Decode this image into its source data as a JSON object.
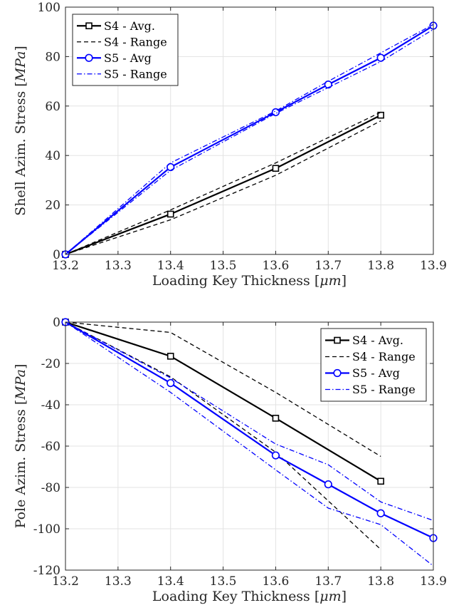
{
  "chart_data": [
    {
      "type": "line",
      "title": "",
      "xlabel": "Loading Key Thickness [μm]",
      "ylabel": "Shell Azim. Stress [MPa]",
      "xlim": [
        13.2,
        13.9
      ],
      "ylim": [
        0,
        100
      ],
      "xticks": [
        13.2,
        13.3,
        13.4,
        13.5,
        13.6,
        13.7,
        13.8,
        13.9
      ],
      "yticks": [
        0,
        20,
        40,
        60,
        80,
        100
      ],
      "xtick_labels": [
        "13.2",
        "13.3",
        "13.4",
        "13.5",
        "13.6",
        "13.7",
        "13.8",
        "13.9"
      ],
      "ytick_labels": [
        "0",
        "20",
        "40",
        "60",
        "80",
        "100"
      ],
      "grid": true,
      "legend_position": "top-left",
      "series": [
        {
          "name": "S4 - Avg.",
          "color": "#000000",
          "style": "solid",
          "marker": "square",
          "x": [
            13.2,
            13.4,
            13.6,
            13.8
          ],
          "y": [
            0,
            16.3,
            34.8,
            56.3
          ]
        },
        {
          "name": "S4 - Range",
          "color": "#000000",
          "style": "dashed",
          "marker": "none",
          "in_legend": true,
          "x": [
            13.2,
            13.4,
            13.6,
            13.8
          ],
          "y": [
            0,
            18.0,
            37.0,
            57.5
          ]
        },
        {
          "name": "",
          "color": "#000000",
          "style": "dashed",
          "marker": "none",
          "in_legend": false,
          "x": [
            13.2,
            13.4,
            13.6,
            13.8
          ],
          "y": [
            0,
            14.0,
            32.0,
            54.0
          ]
        },
        {
          "name": "S5 - Avg",
          "color": "#0000ff",
          "style": "solid",
          "marker": "circle",
          "x": [
            13.2,
            13.4,
            13.6,
            13.7,
            13.8,
            13.9
          ],
          "y": [
            0,
            35.3,
            57.5,
            68.7,
            79.5,
            92.5
          ]
        },
        {
          "name": "S5 - Range",
          "color": "#0000ff",
          "style": "dashdot",
          "marker": "none",
          "in_legend": true,
          "x": [
            13.2,
            13.4,
            13.6,
            13.7,
            13.8,
            13.9
          ],
          "y": [
            0,
            37.0,
            58.0,
            70.0,
            81.5,
            93.0
          ]
        },
        {
          "name": "",
          "color": "#0000ff",
          "style": "dashdot",
          "marker": "none",
          "in_legend": false,
          "x": [
            13.2,
            13.4,
            13.6,
            13.7,
            13.8,
            13.9
          ],
          "y": [
            0,
            34.0,
            57.0,
            67.5,
            78.0,
            91.0
          ]
        }
      ]
    },
    {
      "type": "line",
      "title": "",
      "xlabel": "Loading Key Thickness [μm]",
      "ylabel": "Pole Azim. Stress [MPa]",
      "xlim": [
        13.2,
        13.9
      ],
      "ylim": [
        -120,
        0
      ],
      "xticks": [
        13.2,
        13.3,
        13.4,
        13.5,
        13.6,
        13.7,
        13.8,
        13.9
      ],
      "yticks": [
        0,
        -20,
        -40,
        -60,
        -80,
        -100,
        -120
      ],
      "xtick_labels": [
        "13.2",
        "13.3",
        "13.4",
        "13.5",
        "13.6",
        "13.7",
        "13.8",
        "13.9"
      ],
      "ytick_labels": [
        "0",
        "-20",
        "-40",
        "-60",
        "-80",
        "-100",
        "-120"
      ],
      "grid": true,
      "legend_position": "top-right",
      "series": [
        {
          "name": "S4 - Avg.",
          "color": "#000000",
          "style": "solid",
          "marker": "square",
          "x": [
            13.2,
            13.4,
            13.6,
            13.8
          ],
          "y": [
            0,
            -16.5,
            -46.5,
            -77.0
          ]
        },
        {
          "name": "S4 - Range",
          "color": "#000000",
          "style": "dashed",
          "marker": "none",
          "in_legend": true,
          "x": [
            13.2,
            13.4,
            13.6,
            13.8
          ],
          "y": [
            0,
            -5.0,
            -34.0,
            -65.0
          ]
        },
        {
          "name": "",
          "color": "#000000",
          "style": "dashed",
          "marker": "none",
          "in_legend": false,
          "x": [
            13.2,
            13.4,
            13.6,
            13.8
          ],
          "y": [
            0,
            -26.5,
            -63.0,
            -110.0
          ]
        },
        {
          "name": "S5 - Avg",
          "color": "#0000ff",
          "style": "solid",
          "marker": "circle",
          "x": [
            13.2,
            13.4,
            13.6,
            13.7,
            13.8,
            13.9
          ],
          "y": [
            0,
            -29.5,
            -64.5,
            -78.5,
            -92.5,
            -104.5
          ]
        },
        {
          "name": "S5 - Range",
          "color": "#0000ff",
          "style": "dashdot",
          "marker": "none",
          "in_legend": true,
          "x": [
            13.2,
            13.4,
            13.6,
            13.7,
            13.8,
            13.9
          ],
          "y": [
            0,
            -27.0,
            -59.0,
            -69.0,
            -87.0,
            -96.0
          ]
        },
        {
          "name": "",
          "color": "#0000ff",
          "style": "dashdot",
          "marker": "none",
          "in_legend": false,
          "x": [
            13.2,
            13.4,
            13.6,
            13.7,
            13.8,
            13.9
          ],
          "y": [
            0,
            -34.0,
            -71.5,
            -90.0,
            -98.0,
            -118.0
          ]
        }
      ]
    }
  ]
}
